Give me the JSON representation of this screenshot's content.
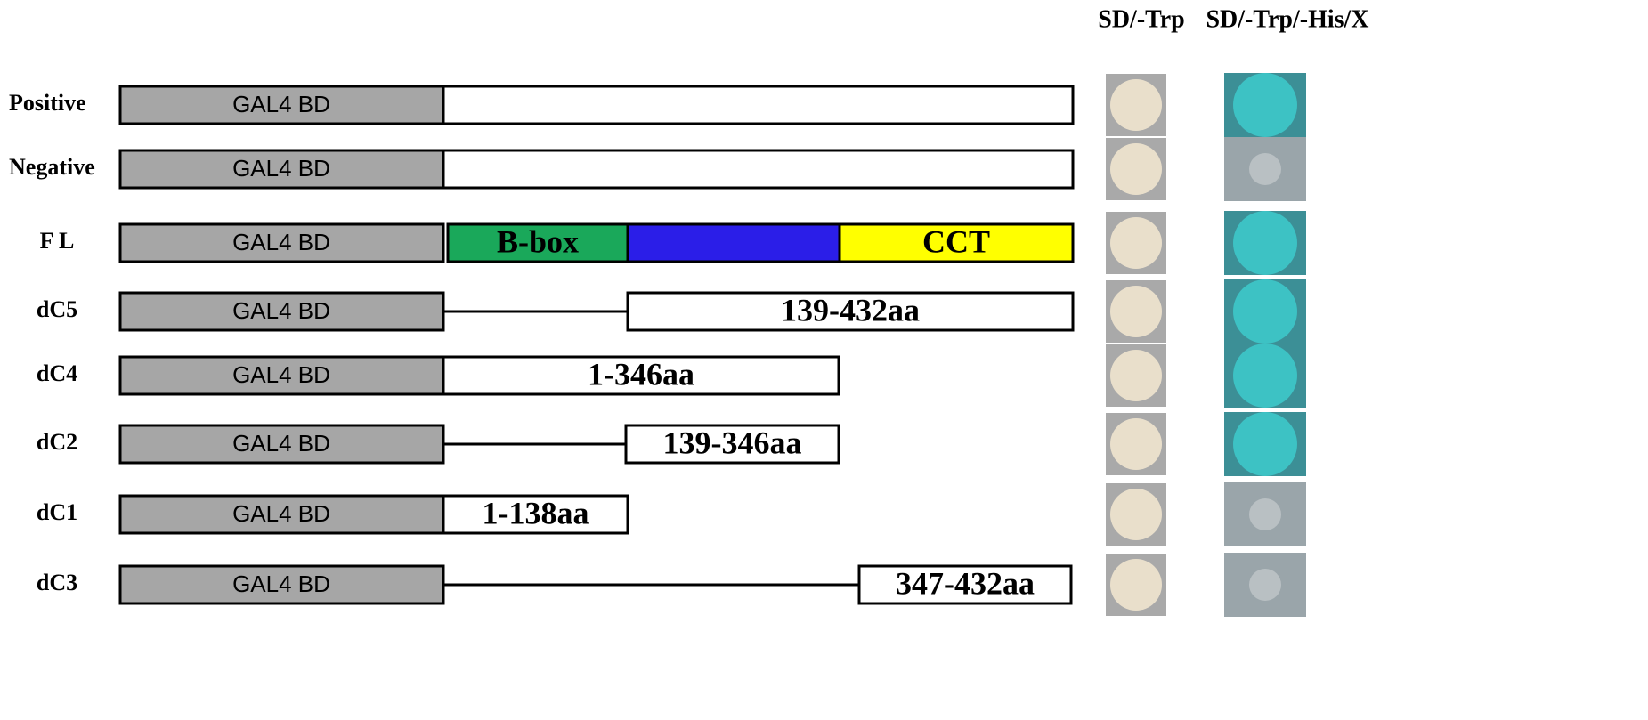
{
  "columns": [
    "SD/-Trp",
    "SD/-Trp/-His/X"
  ],
  "rows": [
    {
      "label": "Positive",
      "bd": "GAL4 BD"
    },
    {
      "label": "Negative",
      "bd": "GAL4 BD"
    },
    {
      "label": "F L",
      "bd": "GAL4 BD",
      "segments": [
        "B-box",
        "CCT"
      ]
    },
    {
      "label": "dC5",
      "bd": "GAL4 BD",
      "segments": [
        "139-432aa"
      ]
    },
    {
      "label": "dC4",
      "bd": "GAL4 BD",
      "segments": [
        "1-346aa"
      ]
    },
    {
      "label": "dC2",
      "bd": "GAL4 BD",
      "segments": [
        "139-346aa"
      ]
    },
    {
      "label": "dC1",
      "bd": "GAL4 BD",
      "segments": [
        "1-138aa"
      ]
    },
    {
      "label": "dC3",
      "bd": "GAL4 BD",
      "segments": [
        "347-432aa"
      ]
    }
  ]
}
